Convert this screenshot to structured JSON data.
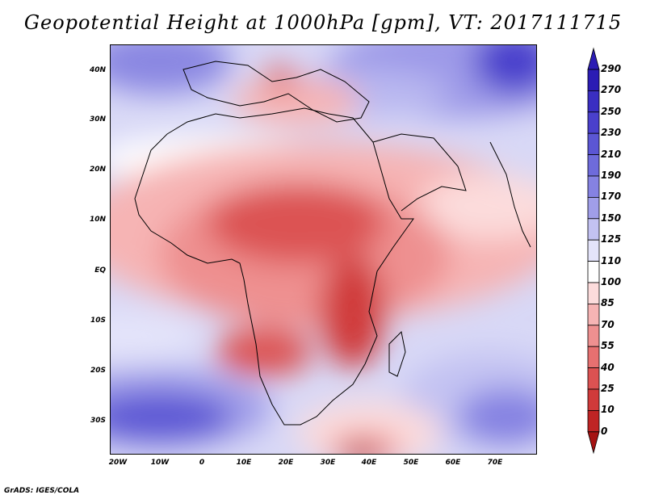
{
  "title": "Geopotential Height at 1000hPa [gpm], VT: 2017111715",
  "credit": "GrADS: IGES/COLA",
  "lat_labels": [
    "40N",
    "30N",
    "20N",
    "10N",
    "EQ",
    "10S",
    "20S",
    "30S"
  ],
  "lon_labels": [
    "20W",
    "10W",
    "0",
    "10E",
    "20E",
    "30E",
    "40E",
    "50E",
    "60E",
    "70E"
  ],
  "colorbar": {
    "labels": [
      "290",
      "270",
      "250",
      "230",
      "210",
      "190",
      "170",
      "150",
      "125",
      "110",
      "100",
      "85",
      "70",
      "55",
      "40",
      "25",
      "10",
      "0"
    ],
    "colors": [
      "#2b1cb4",
      "#3a2ec2",
      "#4a40cc",
      "#5b56d4",
      "#6e6bdb",
      "#8582e2",
      "#a09ee9",
      "#c3c2f2",
      "#e4e4fa",
      "#ffffff",
      "#fcdcdc",
      "#f6b4b4",
      "#ee9090",
      "#e67070",
      "#dc5252",
      "#d03a3a",
      "#bf2424",
      "#a51212"
    ]
  }
}
